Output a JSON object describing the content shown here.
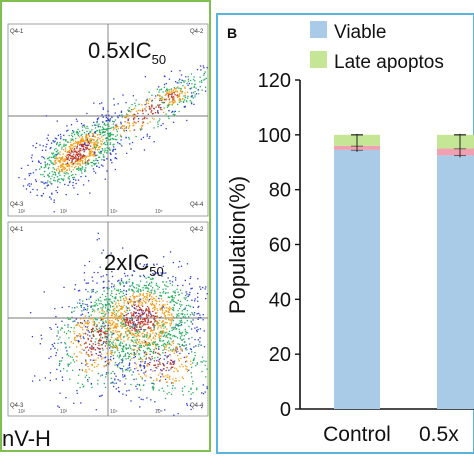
{
  "panel_a": {
    "quadrant_tags": [
      "Q4-1",
      "Q4-2",
      "Q4-3",
      "Q4-4"
    ],
    "axis_ticks": [
      "10²",
      "10³",
      "10⁴",
      "10⁵"
    ],
    "plots": [
      {
        "label_main": "0.5xIC",
        "label_sub": "50"
      },
      {
        "label_main": "2xIC",
        "label_sub": "50"
      }
    ],
    "xlabel_fragment": "nV-H"
  },
  "chart_data": {
    "type": "bar",
    "stacked": true,
    "panel_label": "B",
    "ylabel": "Population(%)",
    "ylim": [
      0,
      120
    ],
    "yticks": [
      "0",
      "20",
      "40",
      "60",
      "80",
      "100",
      "120"
    ],
    "categories": [
      "Control",
      "0.5x"
    ],
    "legend_position": "top",
    "series": [
      {
        "name": "Viable",
        "color": "#a9cbe8",
        "values": [
          94.5,
          92.5
        ]
      },
      {
        "name": "",
        "color": "#f0a0b0",
        "values": [
          1.5,
          2.5
        ]
      },
      {
        "name": "Late apoptos",
        "color": "#c5e694",
        "values": [
          4,
          5
        ]
      }
    ]
  },
  "colors": {
    "panel_a_border": "#7fbf4f",
    "panel_b_border": "#5ab4e0",
    "gate_lines": "#7a7a7a",
    "dots_low": "#2b3bd6"
  }
}
